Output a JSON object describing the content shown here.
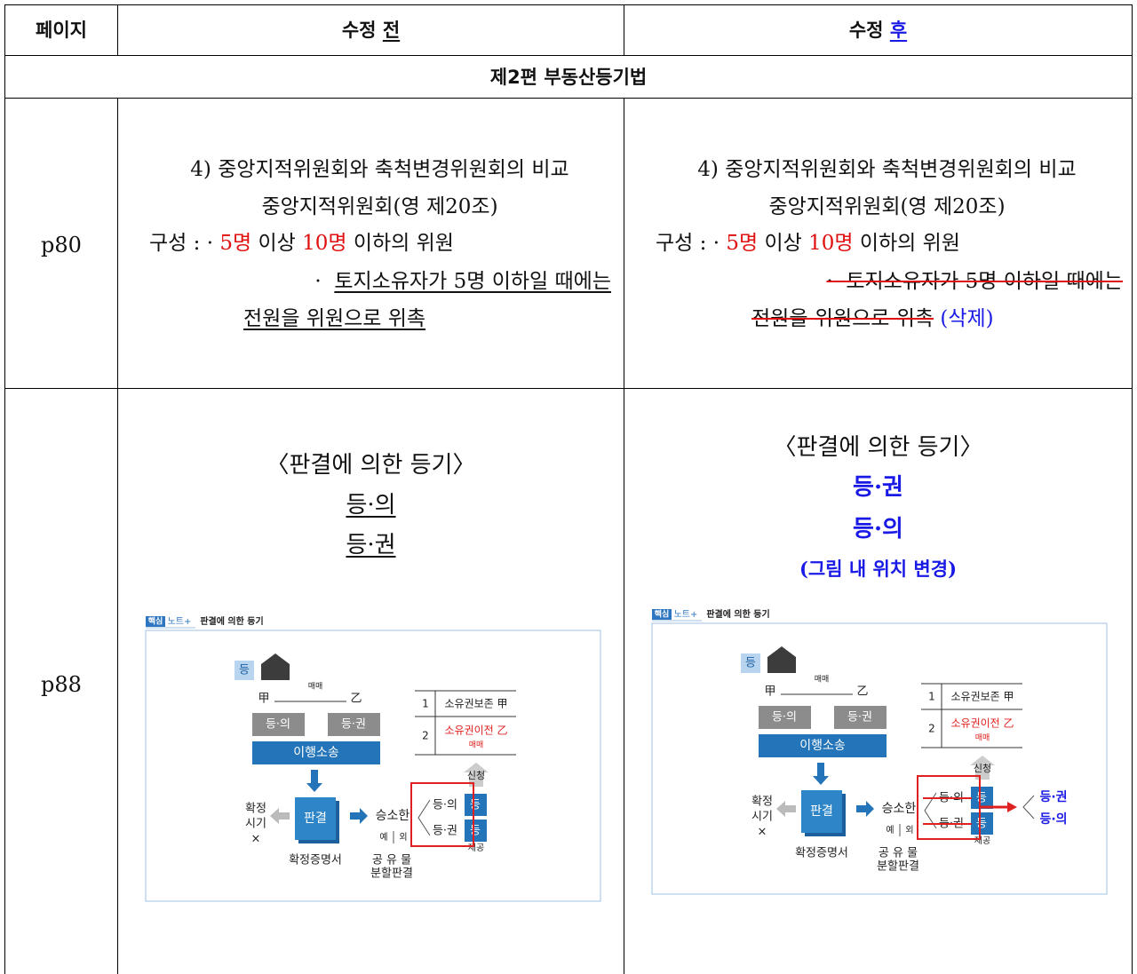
{
  "table": {
    "header": {
      "page": "페이지",
      "before": [
        "수정",
        "전"
      ],
      "after": [
        "수정",
        "후"
      ]
    },
    "section": "제2편 부동산등기법",
    "rows": [
      {
        "page": "p80",
        "before": {
          "title": "4) 중앙지적위원회와 축척변경위원회의 비교",
          "subtitle": "중앙지적위원회(영 제20조)",
          "composition": [
            "구성 : ·",
            "5명",
            "이상",
            "10명",
            "이하의 위원"
          ],
          "condition": {
            "bullet": "·",
            "lines": [
              "토지소유자가 5명 이하일 때에는",
              "전원을 위원으로 위촉"
            ]
          }
        },
        "after": {
          "title": "4) 중앙지적위원회와 축척변경위원회의 비교",
          "subtitle": "중앙지적위원회(영 제20조)",
          "composition": [
            "구성 : ·",
            "5명",
            "이상",
            "10명",
            "이하의 위원"
          ],
          "condition": {
            "bullet": "·",
            "lines": [
              "토지소유자가 5명 이하일 때에는",
              "전원을 위원으로 위촉"
            ]
          },
          "note": "(삭제)"
        }
      },
      {
        "page": "p88",
        "before": {
          "heading": "〈판결에 의한 등기〉",
          "items": [
            "등·의",
            "등·권"
          ],
          "figure": {
            "tag": "핵심",
            "note": "노트+",
            "title": "판결에 의한 등기",
            "register": "등",
            "seller": "甲",
            "sale": "매매",
            "buyer": "乙",
            "request_intent": "등·의",
            "request_right": "등·권",
            "lawsuit": "이행소송",
            "finality": [
              "확정",
              "시기",
              "×"
            ],
            "judgment": "판결",
            "certificate": "확정증명서",
            "winner": "승소한",
            "exception": [
              "예",
              "외"
            ],
            "partition": [
              "공 유 물",
              "분할판결"
            ],
            "docs": [
              "등·의",
              "등·권"
            ],
            "doc_box": [
              "등",
              "등"
            ],
            "provide": "제공",
            "apply": "신청",
            "registry": [
              {
                "no": "1",
                "entry": "소유권보존 甲"
              },
              {
                "no": "2",
                "entry": "소유권이전 乙",
                "cause": "매매"
              }
            ]
          }
        },
        "after": {
          "heading": "〈판결에 의한 등기〉",
          "items": [
            "등·권",
            "등·의"
          ],
          "note": "(그림 내 위치 변경)",
          "figure": {
            "tag": "핵심",
            "note": "노트+",
            "title": "판결에 의한 등기",
            "register": "등",
            "seller": "甲",
            "sale": "매매",
            "buyer": "乙",
            "request_intent": "등·의",
            "request_right": "등·권",
            "lawsuit": "이행소송",
            "finality": [
              "확정",
              "시기",
              "×"
            ],
            "judgment": "판결",
            "certificate": "확정증명서",
            "winner": "승소한",
            "exception": [
              "예",
              "외"
            ],
            "partition": [
              "공 유 물",
              "분할판결"
            ],
            "docs": [
              "등·의",
              "등·권"
            ],
            "doc_box": [
              "등",
              "등"
            ],
            "provide": "제공",
            "apply": "신청",
            "registry": [
              {
                "no": "1",
                "entry": "소유권보존 甲"
              },
              {
                "no": "2",
                "entry": "소유권이전 乙",
                "cause": "매매"
              }
            ],
            "result": [
              "등·권",
              "등·의"
            ]
          }
        }
      }
    ]
  }
}
